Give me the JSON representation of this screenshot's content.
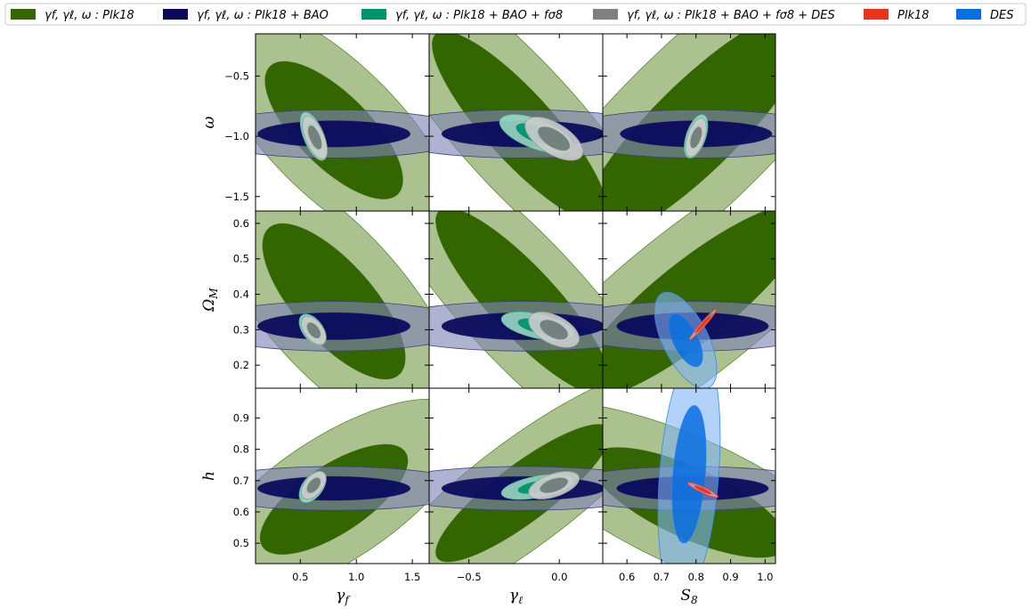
{
  "chart_data": {
    "type": "corner-contour",
    "legend": [
      {
        "label": "γf, γℓ, ω :  Plk18",
        "color": "#336600"
      },
      {
        "label": "γf, γℓ, ω :  Plk18 + BAO",
        "color": "#0b0b5c"
      },
      {
        "label": "γf, γℓ, ω :  Plk18 + BAO + fσ8",
        "color": "#00936d"
      },
      {
        "label": "γf, γℓ, ω :  Plk18 + BAO + fσ8 + DES",
        "color": "#808080"
      },
      {
        "label": "Plk18",
        "color": "#e8341c"
      },
      {
        "label": "DES",
        "color": "#0a6fe0"
      }
    ],
    "columns": [
      {
        "param": "γf",
        "label": "γf",
        "range": [
          0.1,
          1.65
        ],
        "ticks": [
          0.5,
          1.0,
          1.5
        ],
        "tick_labels": [
          "0.5",
          "1.0",
          "1.5"
        ]
      },
      {
        "param": "γℓ",
        "label": "γℓ",
        "range": [
          -0.72,
          0.24
        ],
        "ticks": [
          -0.5,
          0.0
        ],
        "tick_labels": [
          "−0.5",
          "0.0"
        ]
      },
      {
        "param": "S8",
        "label": "S8",
        "range": [
          0.53,
          1.03
        ],
        "ticks": [
          0.6,
          0.7,
          0.8,
          0.9,
          1.0
        ],
        "tick_labels": [
          "0.6",
          "0.7",
          "0.8",
          "0.9",
          "1.0"
        ]
      }
    ],
    "rows": [
      {
        "param": "ω",
        "label": "ω",
        "range": [
          -1.62,
          -0.15
        ],
        "ticks": [
          -1.5,
          -1.0,
          -0.5
        ],
        "tick_labels": [
          "−1.5",
          "−1.0",
          "−0.5"
        ]
      },
      {
        "param": "ΩM",
        "label": "ΩM",
        "range": [
          0.135,
          0.635
        ],
        "ticks": [
          0.2,
          0.3,
          0.4,
          0.5,
          0.6
        ],
        "tick_labels": [
          "0.2",
          "0.3",
          "0.4",
          "0.5",
          "0.6"
        ]
      },
      {
        "param": "h",
        "label": "h",
        "range": [
          0.435,
          0.995
        ],
        "ticks": [
          0.5,
          0.6,
          0.7,
          0.8,
          0.9
        ],
        "tick_labels": [
          "0.5",
          "0.6",
          "0.7",
          "0.8",
          "0.9"
        ]
      }
    ],
    "contours": [
      {
        "row": 0,
        "col": 0,
        "dataset": "Plk18",
        "cx": 0.8,
        "cy": -0.95,
        "rx": 0.56,
        "ry": 0.52,
        "rho": -0.72
      },
      {
        "row": 0,
        "col": 0,
        "dataset": "BAO",
        "cx": 0.8,
        "cy": -0.98,
        "rx": 0.62,
        "ry": 0.1,
        "rho": 0.0
      },
      {
        "row": 0,
        "col": 0,
        "dataset": "fs8",
        "cx": 0.62,
        "cy": -1.0,
        "rx": 0.06,
        "ry": 0.1,
        "rho": -0.6
      },
      {
        "row": 0,
        "col": 0,
        "dataset": "DES_comb",
        "cx": 0.63,
        "cy": -1.01,
        "rx": 0.055,
        "ry": 0.09,
        "rho": -0.6
      },
      {
        "row": 0,
        "col": 1,
        "dataset": "Plk18",
        "cx": -0.22,
        "cy": -0.92,
        "rx": 0.44,
        "ry": 0.72,
        "rho": -0.86
      },
      {
        "row": 0,
        "col": 1,
        "dataset": "BAO",
        "cx": -0.2,
        "cy": -0.98,
        "rx": 0.41,
        "ry": 0.1,
        "rho": 0.0
      },
      {
        "row": 0,
        "col": 1,
        "dataset": "fs8",
        "cx": -0.13,
        "cy": -0.98,
        "rx": 0.1,
        "ry": 0.08,
        "rho": -0.6
      },
      {
        "row": 0,
        "col": 1,
        "dataset": "DES_comb",
        "cx": -0.03,
        "cy": -1.02,
        "rx": 0.08,
        "ry": 0.09,
        "rho": -0.6
      },
      {
        "row": 0,
        "col": 2,
        "dataset": "Plk18",
        "cx": 0.8,
        "cy": -0.92,
        "rx": 0.31,
        "ry": 0.88,
        "rho": 0.86
      },
      {
        "row": 0,
        "col": 2,
        "dataset": "BAO",
        "cx": 0.8,
        "cy": -0.98,
        "rx": 0.2,
        "ry": 0.1,
        "rho": 0.0
      },
      {
        "row": 0,
        "col": 2,
        "dataset": "fs8",
        "cx": 0.8,
        "cy": -1.0,
        "rx": 0.017,
        "ry": 0.09,
        "rho": 0.5
      },
      {
        "row": 0,
        "col": 2,
        "dataset": "DES_comb",
        "cx": 0.8,
        "cy": -1.01,
        "rx": 0.015,
        "ry": 0.08,
        "rho": 0.5
      },
      {
        "row": 1,
        "col": 0,
        "dataset": "Plk18",
        "cx": 0.8,
        "cy": 0.38,
        "rx": 0.58,
        "ry": 0.2,
        "rho": -0.72
      },
      {
        "row": 1,
        "col": 0,
        "dataset": "BAO",
        "cx": 0.8,
        "cy": 0.31,
        "rx": 0.62,
        "ry": 0.035,
        "rho": 0.0
      },
      {
        "row": 1,
        "col": 0,
        "dataset": "fs8",
        "cx": 0.61,
        "cy": 0.3,
        "rx": 0.06,
        "ry": 0.022,
        "rho": -0.5
      },
      {
        "row": 1,
        "col": 0,
        "dataset": "DES_comb",
        "cx": 0.62,
        "cy": 0.298,
        "rx": 0.055,
        "ry": 0.02,
        "rho": -0.5
      },
      {
        "row": 1,
        "col": 1,
        "dataset": "Plk18",
        "cx": -0.2,
        "cy": 0.38,
        "rx": 0.44,
        "ry": 0.24,
        "rho": -0.86
      },
      {
        "row": 1,
        "col": 1,
        "dataset": "BAO",
        "cx": -0.2,
        "cy": 0.31,
        "rx": 0.41,
        "ry": 0.035,
        "rho": 0.0
      },
      {
        "row": 1,
        "col": 1,
        "dataset": "fs8",
        "cx": -0.12,
        "cy": 0.31,
        "rx": 0.1,
        "ry": 0.02,
        "rho": -0.5
      },
      {
        "row": 1,
        "col": 1,
        "dataset": "DES_comb",
        "cx": -0.03,
        "cy": 0.3,
        "rx": 0.07,
        "ry": 0.025,
        "rho": -0.5
      },
      {
        "row": 1,
        "col": 2,
        "dataset": "Plk18",
        "cx": 0.79,
        "cy": 0.38,
        "rx": 0.31,
        "ry": 0.25,
        "rho": 0.86
      },
      {
        "row": 1,
        "col": 2,
        "dataset": "BAO",
        "cx": 0.79,
        "cy": 0.31,
        "rx": 0.2,
        "ry": 0.035,
        "rho": 0.0
      },
      {
        "row": 1,
        "col": 2,
        "dataset": "DES",
        "cx": 0.77,
        "cy": 0.27,
        "rx": 0.045,
        "ry": 0.068,
        "rho": -0.6
      },
      {
        "row": 1,
        "col": 2,
        "dataset": "Plk18_only",
        "cx": 0.82,
        "cy": 0.315,
        "rx": 0.02,
        "ry": 0.022,
        "rho": 0.97
      },
      {
        "row": 2,
        "col": 0,
        "dataset": "Plk18",
        "cx": 0.8,
        "cy": 0.64,
        "rx": 0.6,
        "ry": 0.16,
        "rho": 0.7
      },
      {
        "row": 2,
        "col": 0,
        "dataset": "BAO",
        "cx": 0.8,
        "cy": 0.675,
        "rx": 0.62,
        "ry": 0.035,
        "rho": 0.0
      },
      {
        "row": 2,
        "col": 0,
        "dataset": "fs8",
        "cx": 0.61,
        "cy": 0.68,
        "rx": 0.06,
        "ry": 0.025,
        "rho": 0.5
      },
      {
        "row": 2,
        "col": 0,
        "dataset": "DES_comb",
        "cx": 0.62,
        "cy": 0.685,
        "rx": 0.055,
        "ry": 0.022,
        "rho": 0.5
      },
      {
        "row": 2,
        "col": 1,
        "dataset": "Plk18",
        "cx": -0.2,
        "cy": 0.66,
        "rx": 0.44,
        "ry": 0.2,
        "rho": 0.86
      },
      {
        "row": 2,
        "col": 1,
        "dataset": "BAO",
        "cx": -0.2,
        "cy": 0.675,
        "rx": 0.41,
        "ry": 0.035,
        "rho": 0.0
      },
      {
        "row": 2,
        "col": 1,
        "dataset": "fs8",
        "cx": -0.12,
        "cy": 0.68,
        "rx": 0.1,
        "ry": 0.02,
        "rho": 0.5
      },
      {
        "row": 2,
        "col": 1,
        "dataset": "DES_comb",
        "cx": -0.03,
        "cy": 0.685,
        "rx": 0.07,
        "ry": 0.022,
        "rho": 0.5
      },
      {
        "row": 2,
        "col": 2,
        "dataset": "Plk18",
        "cx": 0.78,
        "cy": 0.63,
        "rx": 0.26,
        "ry": 0.16,
        "rho": -0.72
      },
      {
        "row": 2,
        "col": 2,
        "dataset": "BAO",
        "cx": 0.79,
        "cy": 0.675,
        "rx": 0.2,
        "ry": 0.035,
        "rho": 0.0
      },
      {
        "row": 2,
        "col": 2,
        "dataset": "DES",
        "cx": 0.78,
        "cy": 0.72,
        "rx": 0.045,
        "ry": 0.2,
        "rho": 0.3
      },
      {
        "row": 2,
        "col": 2,
        "dataset": "Plk18_only",
        "cx": 0.82,
        "cy": 0.67,
        "rx": 0.022,
        "ry": 0.012,
        "rho": -0.9
      }
    ]
  },
  "styles": {
    "Plk18": {
      "inner": "#336600",
      "outer": "#acc190",
      "stroke": "#5a8a3a",
      "outer_opacity": 1.0,
      "inner_opacity": 1.0
    },
    "BAO": {
      "inner": "#0b0b5c",
      "outer": "#7f82b5",
      "stroke": "#3c3f7a",
      "outer_opacity": 0.62,
      "inner_opacity": 0.95
    },
    "fs8": {
      "inner": "#00936d",
      "outer": "#9ad9c2",
      "stroke": "#4fbf9a",
      "outer_opacity": 0.9,
      "inner_opacity": 0.95
    },
    "DES_comb": {
      "inner": "#707d7a",
      "outer": "#c8cccb",
      "stroke": "#9a9a9a",
      "outer_opacity": 0.92,
      "inner_opacity": 0.95
    },
    "DES": {
      "inner": "#0a6fe0",
      "outer": "#7fb4f5",
      "stroke": "#3d86e8",
      "outer_opacity": 0.6,
      "inner_opacity": 0.85
    },
    "Plk18_only": {
      "inner": "#e8341c",
      "outer": "#f3a89a",
      "stroke": "#e8341c",
      "outer_opacity": 0.7,
      "inner_opacity": 0.95
    }
  }
}
